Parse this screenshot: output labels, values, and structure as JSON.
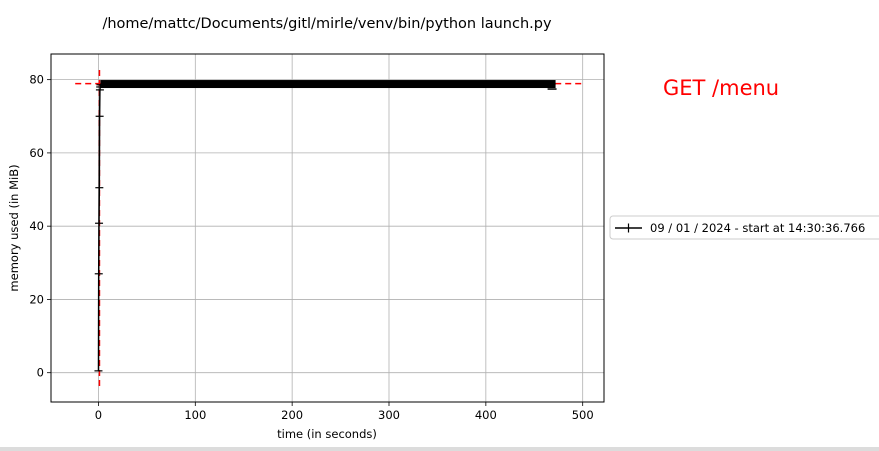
{
  "chart_data": {
    "type": "line",
    "title": "/home/mattc/Documents/gitl/mirle/venv/bin/python launch.py",
    "xlabel": "time (in seconds)",
    "ylabel": "memory used (in MiB)",
    "xlim": [
      -49,
      522
    ],
    "ylim": [
      -8,
      87
    ],
    "xticks": [
      0,
      100,
      200,
      300,
      400,
      500
    ],
    "yticks": [
      0,
      20,
      40,
      60,
      80
    ],
    "grid": true,
    "legend_position": "right",
    "annotation": "GET /menu",
    "annotation_color": "#ff0000",
    "series": [
      {
        "name": "09 / 01 / 2024 - start at 14:30:36.766",
        "color": "#000000",
        "marker": "+",
        "x": [
          0.0,
          0.3,
          0.6,
          0.9,
          1.2,
          1.5,
          1.8,
          2.0,
          50,
          100,
          150,
          200,
          250,
          300,
          350,
          400,
          450,
          472
        ],
        "y": [
          0.5,
          27.0,
          40.8,
          50.5,
          70.0,
          77.2,
          78.0,
          78.6,
          78.7,
          78.8,
          78.8,
          78.8,
          78.8,
          78.8,
          78.8,
          78.8,
          78.8,
          78.8
        ]
      }
    ],
    "max_time_line": {
      "x": 0,
      "color": "#ff0000",
      "style": "dashed"
    },
    "max_memory_line": {
      "y": 78.9,
      "color": "#ff0000",
      "style": "dashed"
    },
    "end_bracket": {
      "x": 472
    }
  }
}
